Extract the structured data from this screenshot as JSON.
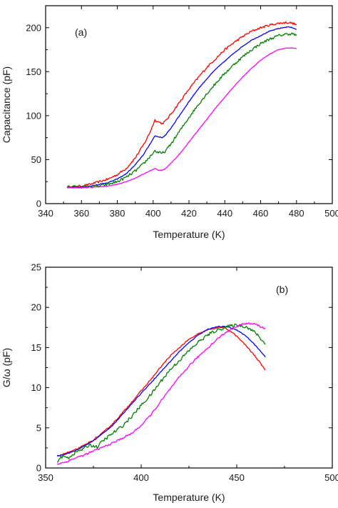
{
  "chart_data": [
    {
      "type": "line",
      "panel_label": "(a)",
      "xlabel": "Temperature (K)",
      "ylabel": "Capacitance (pF)",
      "xlim": [
        340,
        500
      ],
      "ylim": [
        0,
        225
      ],
      "xticks": [
        340,
        360,
        380,
        400,
        420,
        440,
        460,
        480,
        500
      ],
      "yticks": [
        0,
        50,
        100,
        150,
        200
      ],
      "legend": "none",
      "grid": false,
      "series": [
        {
          "color": "#ff0000",
          "noise": 1.2,
          "points": [
            [
              352,
              19
            ],
            [
              360,
              20
            ],
            [
              365,
              22
            ],
            [
              370,
              25
            ],
            [
              375,
              28
            ],
            [
              380,
              33
            ],
            [
              385,
              40
            ],
            [
              390,
              52
            ],
            [
              395,
              68
            ],
            [
              398,
              80
            ],
            [
              401,
              95
            ],
            [
              403,
              93
            ],
            [
              405,
              91
            ],
            [
              407,
              94
            ],
            [
              410,
              102
            ],
            [
              415,
              116
            ],
            [
              420,
              130
            ],
            [
              425,
              143
            ],
            [
              430,
              155
            ],
            [
              435,
              165
            ],
            [
              440,
              175
            ],
            [
              445,
              183
            ],
            [
              450,
              190
            ],
            [
              455,
              196
            ],
            [
              460,
              200
            ],
            [
              465,
              203
            ],
            [
              470,
              205
            ],
            [
              475,
              206
            ],
            [
              478,
              205
            ],
            [
              480,
              203
            ]
          ]
        },
        {
          "color": "#0000ff",
          "noise": 0.4,
          "points": [
            [
              352,
              19
            ],
            [
              360,
              19
            ],
            [
              365,
              20
            ],
            [
              370,
              22
            ],
            [
              375,
              24
            ],
            [
              380,
              28
            ],
            [
              385,
              34
            ],
            [
              390,
              44
            ],
            [
              395,
              57
            ],
            [
              398,
              67
            ],
            [
              401,
              77
            ],
            [
              403,
              76
            ],
            [
              405,
              75
            ],
            [
              407,
              78
            ],
            [
              410,
              86
            ],
            [
              415,
              101
            ],
            [
              420,
              116
            ],
            [
              425,
              130
            ],
            [
              430,
              142
            ],
            [
              435,
              153
            ],
            [
              440,
              162
            ],
            [
              445,
              171
            ],
            [
              450,
              179
            ],
            [
              455,
              186
            ],
            [
              460,
              191
            ],
            [
              465,
              196
            ],
            [
              470,
              199
            ],
            [
              475,
              201
            ],
            [
              478,
              200
            ],
            [
              480,
              198
            ]
          ]
        },
        {
          "color": "#008000",
          "noise": 1.5,
          "points": [
            [
              352,
              19
            ],
            [
              360,
              19
            ],
            [
              365,
              19
            ],
            [
              370,
              20
            ],
            [
              375,
              22
            ],
            [
              380,
              25
            ],
            [
              385,
              30
            ],
            [
              390,
              37
            ],
            [
              395,
              46
            ],
            [
              398,
              53
            ],
            [
              401,
              60
            ],
            [
              403,
              58
            ],
            [
              405,
              57
            ],
            [
              407,
              60
            ],
            [
              410,
              68
            ],
            [
              415,
              83
            ],
            [
              420,
              98
            ],
            [
              425,
              112
            ],
            [
              430,
              125
            ],
            [
              435,
              137
            ],
            [
              440,
              148
            ],
            [
              445,
              158
            ],
            [
              450,
              167
            ],
            [
              455,
              175
            ],
            [
              460,
              182
            ],
            [
              465,
              187
            ],
            [
              470,
              191
            ],
            [
              475,
              193
            ],
            [
              478,
              193
            ],
            [
              480,
              191
            ]
          ]
        },
        {
          "color": "#ff00ff",
          "noise": 0.3,
          "points": [
            [
              352,
              18
            ],
            [
              360,
              18
            ],
            [
              365,
              19
            ],
            [
              370,
              19
            ],
            [
              375,
              20
            ],
            [
              380,
              22
            ],
            [
              385,
              25
            ],
            [
              390,
              29
            ],
            [
              395,
              34
            ],
            [
              398,
              37
            ],
            [
              401,
              40
            ],
            [
              403,
              38
            ],
            [
              405,
              38
            ],
            [
              407,
              40
            ],
            [
              410,
              46
            ],
            [
              415,
              57
            ],
            [
              420,
              70
            ],
            [
              425,
              83
            ],
            [
              430,
              96
            ],
            [
              435,
              109
            ],
            [
              440,
              121
            ],
            [
              445,
              133
            ],
            [
              450,
              144
            ],
            [
              455,
              154
            ],
            [
              460,
              163
            ],
            [
              465,
              170
            ],
            [
              470,
              175
            ],
            [
              475,
              177
            ],
            [
              478,
              177
            ],
            [
              480,
              176
            ]
          ]
        }
      ]
    },
    {
      "type": "line",
      "panel_label": "(b)",
      "xlabel": "Temperature (K)",
      "ylabel": "G/ω (pF)",
      "xlim": [
        350,
        500
      ],
      "ylim": [
        0,
        25
      ],
      "xticks": [
        350,
        400,
        450,
        500
      ],
      "yticks": [
        0,
        5,
        10,
        15,
        20,
        25
      ],
      "legend": "none",
      "grid": false,
      "series": [
        {
          "color": "#ff0000",
          "noise": 0.08,
          "points": [
            [
              356,
              1.5
            ],
            [
              360,
              1.8
            ],
            [
              365,
              2.2
            ],
            [
              370,
              2.8
            ],
            [
              375,
              3.5
            ],
            [
              380,
              4.4
            ],
            [
              385,
              5.5
            ],
            [
              390,
              6.8
            ],
            [
              395,
              8.2
            ],
            [
              400,
              9.6
            ],
            [
              405,
              11.0
            ],
            [
              410,
              12.5
            ],
            [
              415,
              13.9
            ],
            [
              420,
              15.0
            ],
            [
              425,
              16.0
            ],
            [
              430,
              16.7
            ],
            [
              435,
              17.2
            ],
            [
              440,
              17.5
            ],
            [
              443,
              17.5
            ],
            [
              447,
              17.0
            ],
            [
              450,
              16.4
            ],
            [
              455,
              15.2
            ],
            [
              460,
              13.8
            ],
            [
              465,
              12.2
            ]
          ]
        },
        {
          "color": "#0000ff",
          "noise": 0.05,
          "points": [
            [
              356,
              1.5
            ],
            [
              360,
              1.7
            ],
            [
              365,
              2.1
            ],
            [
              370,
              2.7
            ],
            [
              375,
              3.4
            ],
            [
              380,
              4.3
            ],
            [
              385,
              5.3
            ],
            [
              390,
              6.6
            ],
            [
              395,
              8.0
            ],
            [
              400,
              9.3
            ],
            [
              405,
              10.6
            ],
            [
              410,
              11.9
            ],
            [
              415,
              13.2
            ],
            [
              420,
              14.5
            ],
            [
              425,
              15.6
            ],
            [
              430,
              16.6
            ],
            [
              435,
              17.3
            ],
            [
              440,
              17.6
            ],
            [
              445,
              17.6
            ],
            [
              450,
              17.2
            ],
            [
              455,
              16.4
            ],
            [
              460,
              15.2
            ],
            [
              465,
              13.8
            ]
          ]
        },
        {
          "color": "#008000",
          "noise": 0.2,
          "points": [
            [
              356,
              0.8
            ],
            [
              358,
              1.4
            ],
            [
              362,
              1.3
            ],
            [
              366,
              2.0
            ],
            [
              370,
              2.4
            ],
            [
              373,
              2.9
            ],
            [
              377,
              2.6
            ],
            [
              380,
              3.4
            ],
            [
              385,
              4.3
            ],
            [
              390,
              5.2
            ],
            [
              395,
              6.4
            ],
            [
              400,
              7.8
            ],
            [
              405,
              9.1
            ],
            [
              410,
              10.7
            ],
            [
              415,
              12.2
            ],
            [
              420,
              13.4
            ],
            [
              425,
              14.6
            ],
            [
              430,
              15.7
            ],
            [
              435,
              16.6
            ],
            [
              440,
              17.2
            ],
            [
              445,
              17.6
            ],
            [
              450,
              17.8
            ],
            [
              455,
              17.6
            ],
            [
              460,
              16.8
            ],
            [
              465,
              15.4
            ]
          ]
        },
        {
          "color": "#ff00ff",
          "noise": 0.12,
          "points": [
            [
              356,
              0.5
            ],
            [
              360,
              0.7
            ],
            [
              365,
              1.2
            ],
            [
              370,
              1.6
            ],
            [
              375,
              2.1
            ],
            [
              380,
              2.6
            ],
            [
              385,
              3.1
            ],
            [
              390,
              3.7
            ],
            [
              395,
              4.3
            ],
            [
              400,
              5.3
            ],
            [
              405,
              6.6
            ],
            [
              410,
              8.2
            ],
            [
              415,
              9.8
            ],
            [
              420,
              11.3
            ],
            [
              425,
              12.7
            ],
            [
              430,
              13.9
            ],
            [
              435,
              15.0
            ],
            [
              440,
              16.1
            ],
            [
              445,
              17.0
            ],
            [
              450,
              17.7
            ],
            [
              455,
              18.0
            ],
            [
              460,
              17.9
            ],
            [
              465,
              17.3
            ]
          ]
        }
      ]
    }
  ]
}
